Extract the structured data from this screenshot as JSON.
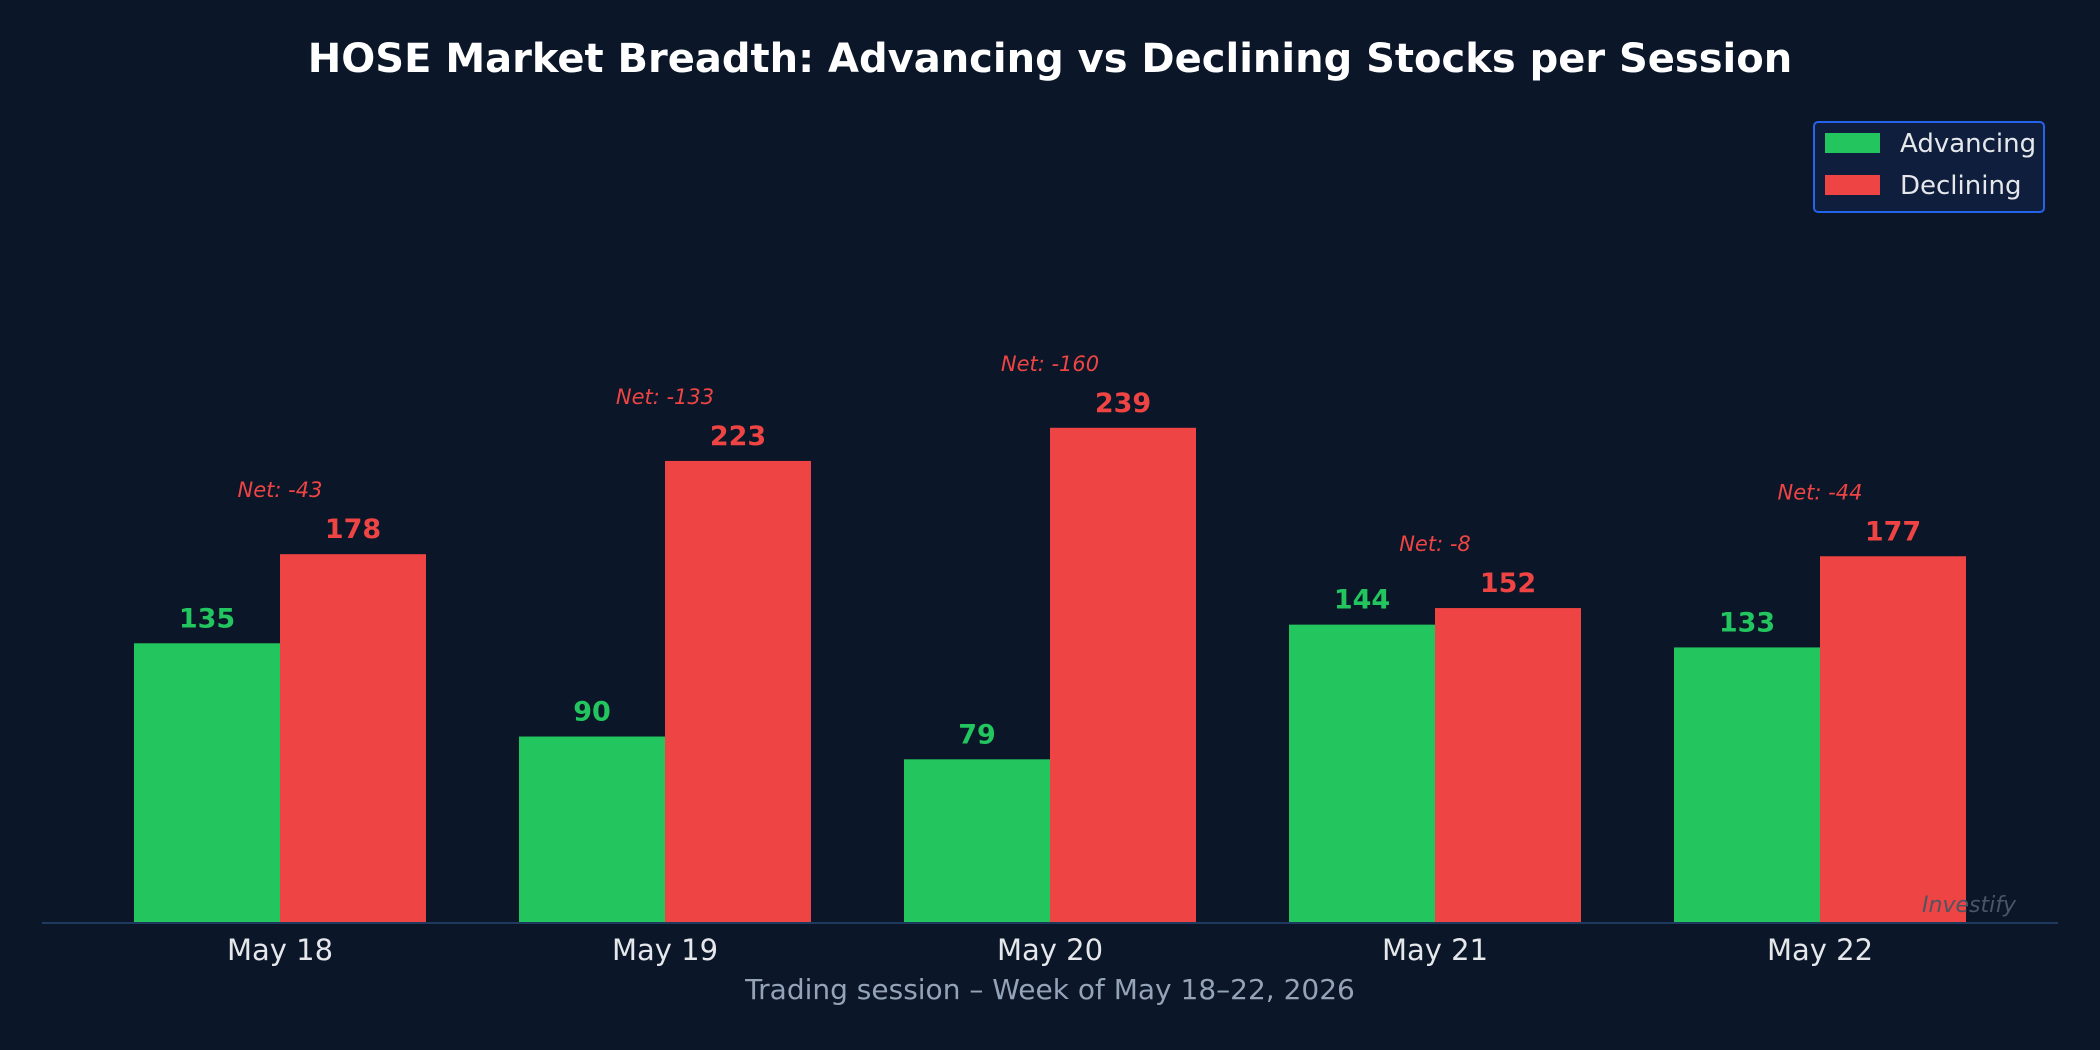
{
  "colors": {
    "background": "#0b1628",
    "advancing": "#22c55e",
    "declining": "#ef4444",
    "axis": "#1e3a5f",
    "title": "#ffffff",
    "tick": "#e5e7eb",
    "xlabel": "#94a3b8",
    "legend_border": "#2563eb",
    "legend_bg": "#0f1e3d",
    "watermark": "#4b5563"
  },
  "chart_data": {
    "type": "bar",
    "title": "HOSE Market Breadth: Advancing vs Declining Stocks per Session",
    "xlabel": "Trading session – Week of May 18–22, 2026",
    "ylabel": "",
    "categories": [
      "May 18",
      "May 19",
      "May 20",
      "May 21",
      "May 22"
    ],
    "series": [
      {
        "name": "Advancing",
        "values": [
          135,
          90,
          79,
          144,
          133
        ]
      },
      {
        "name": "Declining",
        "values": [
          178,
          223,
          239,
          152,
          177
        ]
      }
    ],
    "annotations": [
      "Net: -43",
      "Net: -133",
      "Net: -160",
      "Net: -8",
      "Net: -44"
    ],
    "ylim": [
      0,
      300
    ],
    "grid": false,
    "legend_position": "top-right"
  },
  "watermark": "Investify"
}
